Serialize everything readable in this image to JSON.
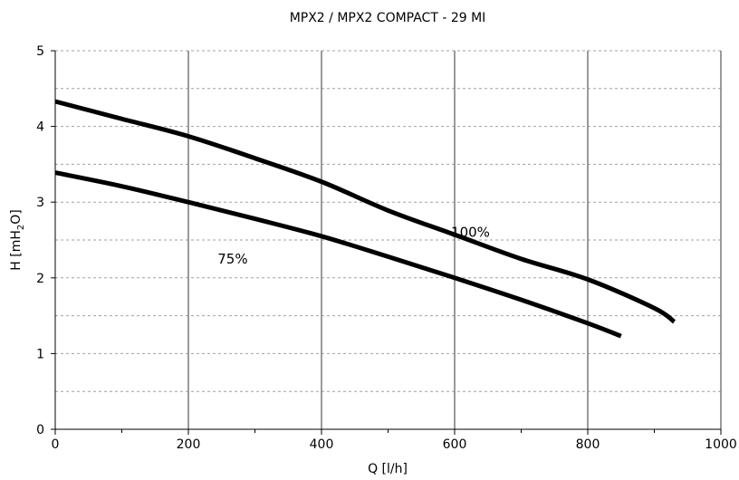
{
  "chart_data": {
    "type": "line",
    "title": "MPX2 / MPX2 COMPACT - 29 MI",
    "xlabel": "Q [l/h]",
    "ylabel": {
      "main": "H [mH",
      "sub": "2",
      "tail": "O]"
    },
    "xlim": [
      0,
      1000
    ],
    "ylim": [
      0,
      5
    ],
    "x_ticks": [
      0,
      200,
      400,
      600,
      800,
      1000
    ],
    "y_ticks": [
      0,
      1,
      2,
      3,
      4,
      5
    ],
    "grid": {
      "x_major": true,
      "y_major": true,
      "y_minor_dashed": true
    },
    "legend": "none",
    "line_color": "#000000",
    "grid_color": "#808080",
    "series": [
      {
        "name": "100%",
        "x": [
          0,
          100,
          200,
          300,
          400,
          500,
          600,
          700,
          800,
          900,
          930
        ],
        "y": [
          4.33,
          4.1,
          3.87,
          3.58,
          3.27,
          2.89,
          2.57,
          2.25,
          1.98,
          1.6,
          1.42
        ]
      },
      {
        "name": "75%",
        "x": [
          0,
          100,
          200,
          300,
          400,
          500,
          600,
          700,
          800,
          850
        ],
        "y": [
          3.39,
          3.21,
          3.0,
          2.78,
          2.55,
          2.28,
          2.0,
          1.71,
          1.4,
          1.23
        ]
      }
    ]
  }
}
